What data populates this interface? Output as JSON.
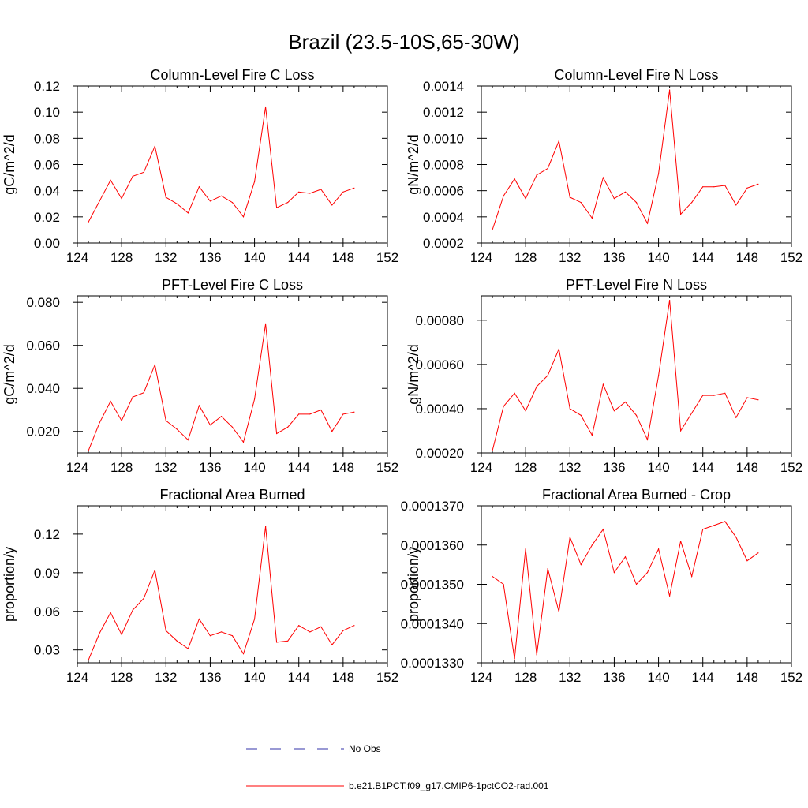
{
  "title": "Brazil (23.5-10S,65-30W)",
  "colors": {
    "model_line": "#ff0000",
    "obs_line": "#3333aa",
    "axis": "#000000"
  },
  "legend": {
    "obs_label": "No Obs",
    "model_label": "b.e21.B1PCT.f09_g17.CMIP6-1pctCO2-rad.001"
  },
  "chart_data": [
    {
      "type": "line",
      "title": "Column-Level Fire C Loss",
      "ylabel": "gC/m^2/d",
      "xlim": [
        124,
        152
      ],
      "ylim": [
        0.0,
        0.12
      ],
      "xticks": [
        124,
        128,
        132,
        136,
        140,
        144,
        148,
        152
      ],
      "yticks": [
        0.0,
        0.02,
        0.04,
        0.06,
        0.08,
        0.1,
        0.12
      ],
      "ytick_labels": [
        "0.00",
        "0.02",
        "0.04",
        "0.06",
        "0.08",
        "0.10",
        "0.12"
      ],
      "x": [
        125,
        126,
        127,
        128,
        129,
        130,
        131,
        132,
        133,
        134,
        135,
        136,
        137,
        138,
        139,
        140,
        141,
        142,
        143,
        144,
        145,
        146,
        147,
        148,
        149
      ],
      "series": [
        {
          "values": [
            0.016,
            0.032,
            0.048,
            0.034,
            0.051,
            0.054,
            0.074,
            0.035,
            0.03,
            0.023,
            0.043,
            0.032,
            0.036,
            0.031,
            0.02,
            0.047,
            0.104,
            0.027,
            0.031,
            0.039,
            0.038,
            0.041,
            0.029,
            0.039,
            0.042
          ]
        }
      ]
    },
    {
      "type": "line",
      "title": "Column-Level Fire N Loss",
      "ylabel": "gN/m^2/d",
      "xlim": [
        124,
        152
      ],
      "ylim": [
        0.0002,
        0.0014
      ],
      "xticks": [
        124,
        128,
        132,
        136,
        140,
        144,
        148,
        152
      ],
      "yticks": [
        0.0002,
        0.0004,
        0.0006,
        0.0008,
        0.001,
        0.0012,
        0.0014
      ],
      "ytick_labels": [
        "0.0002",
        "0.0004",
        "0.0006",
        "0.0008",
        "0.0010",
        "0.0012",
        "0.0014"
      ],
      "x": [
        125,
        126,
        127,
        128,
        129,
        130,
        131,
        132,
        133,
        134,
        135,
        136,
        137,
        138,
        139,
        140,
        141,
        142,
        143,
        144,
        145,
        146,
        147,
        148,
        149
      ],
      "series": [
        {
          "values": [
            0.0003,
            0.00056,
            0.00069,
            0.00054,
            0.00072,
            0.00077,
            0.00098,
            0.00055,
            0.00051,
            0.00039,
            0.0007,
            0.00054,
            0.00059,
            0.00051,
            0.00035,
            0.00073,
            0.00137,
            0.00042,
            0.00051,
            0.00063,
            0.00063,
            0.00064,
            0.00049,
            0.00062,
            0.00065
          ]
        }
      ]
    },
    {
      "type": "line",
      "title": "PFT-Level Fire C Loss",
      "ylabel": "gC/m^2/d",
      "xlim": [
        124,
        152
      ],
      "ylim": [
        0.01,
        0.083
      ],
      "xticks": [
        124,
        128,
        132,
        136,
        140,
        144,
        148,
        152
      ],
      "yticks": [
        0.02,
        0.04,
        0.06,
        0.08
      ],
      "ytick_labels": [
        "0.020",
        "0.040",
        "0.060",
        "0.080"
      ],
      "x": [
        125,
        126,
        127,
        128,
        129,
        130,
        131,
        132,
        133,
        134,
        135,
        136,
        137,
        138,
        139,
        140,
        141,
        142,
        143,
        144,
        145,
        146,
        147,
        148,
        149
      ],
      "series": [
        {
          "values": [
            0.011,
            0.024,
            0.034,
            0.025,
            0.036,
            0.038,
            0.051,
            0.025,
            0.021,
            0.016,
            0.032,
            0.023,
            0.027,
            0.022,
            0.015,
            0.035,
            0.07,
            0.019,
            0.022,
            0.028,
            0.028,
            0.03,
            0.02,
            0.028,
            0.029
          ]
        }
      ]
    },
    {
      "type": "line",
      "title": "PFT-Level Fire N Loss",
      "ylabel": "gN/m^2/d",
      "xlim": [
        124,
        152
      ],
      "ylim": [
        0.0002,
        0.00091
      ],
      "xticks": [
        124,
        128,
        132,
        136,
        140,
        144,
        148,
        152
      ],
      "yticks": [
        0.0002,
        0.0004,
        0.0006,
        0.0008
      ],
      "ytick_labels": [
        "0.00020",
        "0.00040",
        "0.00060",
        "0.00080"
      ],
      "x": [
        125,
        126,
        127,
        128,
        129,
        130,
        131,
        132,
        133,
        134,
        135,
        136,
        137,
        138,
        139,
        140,
        141,
        142,
        143,
        144,
        145,
        146,
        147,
        148,
        149
      ],
      "series": [
        {
          "values": [
            0.00021,
            0.00041,
            0.00047,
            0.00039,
            0.0005,
            0.00055,
            0.00067,
            0.0004,
            0.00037,
            0.00028,
            0.00051,
            0.00039,
            0.00043,
            0.00037,
            0.00026,
            0.00055,
            0.00089,
            0.0003,
            0.00038,
            0.00046,
            0.00046,
            0.00047,
            0.00036,
            0.00045,
            0.00044
          ]
        }
      ]
    },
    {
      "type": "line",
      "title": "Fractional Area Burned",
      "ylabel": "proportion/y",
      "xlim": [
        124,
        152
      ],
      "ylim": [
        0.02,
        0.142
      ],
      "xticks": [
        124,
        128,
        132,
        136,
        140,
        144,
        148,
        152
      ],
      "yticks": [
        0.03,
        0.06,
        0.09,
        0.12
      ],
      "ytick_labels": [
        "0.03",
        "0.06",
        "0.09",
        "0.12"
      ],
      "x": [
        125,
        126,
        127,
        128,
        129,
        130,
        131,
        132,
        133,
        134,
        135,
        136,
        137,
        138,
        139,
        140,
        141,
        142,
        143,
        144,
        145,
        146,
        147,
        148,
        149
      ],
      "series": [
        {
          "values": [
            0.022,
            0.043,
            0.059,
            0.042,
            0.061,
            0.07,
            0.092,
            0.045,
            0.037,
            0.031,
            0.054,
            0.041,
            0.044,
            0.041,
            0.027,
            0.054,
            0.126,
            0.036,
            0.037,
            0.049,
            0.044,
            0.048,
            0.034,
            0.045,
            0.049
          ]
        }
      ]
    },
    {
      "type": "line",
      "title": "Fractional Area Burned - Crop",
      "ylabel": "proportion/y",
      "xlim": [
        124,
        152
      ],
      "ylim": [
        0.000133,
        0.000137
      ],
      "xticks": [
        124,
        128,
        132,
        136,
        140,
        144,
        148,
        152
      ],
      "yticks": [
        0.000133,
        0.000134,
        0.000135,
        0.000136,
        0.000137
      ],
      "ytick_labels": [
        "0.0001330",
        "0.0001340",
        "0.0001350",
        "0.0001360",
        "0.0001370"
      ],
      "x": [
        125,
        126,
        127,
        128,
        129,
        130,
        131,
        132,
        133,
        134,
        135,
        136,
        137,
        138,
        139,
        140,
        141,
        142,
        143,
        144,
        145,
        146,
        147,
        148,
        149
      ],
      "series": [
        {
          "values": [
            0.0001352,
            0.000135,
            0.0001331,
            0.0001359,
            0.0001332,
            0.0001354,
            0.0001343,
            0.0001362,
            0.0001355,
            0.000136,
            0.0001364,
            0.0001353,
            0.0001357,
            0.000135,
            0.0001353,
            0.0001359,
            0.0001347,
            0.0001361,
            0.0001352,
            0.0001364,
            0.0001365,
            0.0001366,
            0.0001362,
            0.0001356,
            0.0001358
          ]
        }
      ]
    }
  ]
}
